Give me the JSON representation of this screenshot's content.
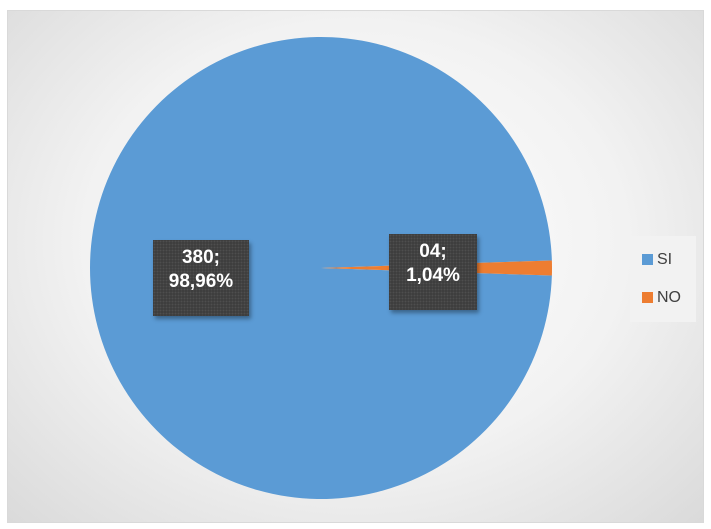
{
  "chart_data": {
    "type": "pie",
    "categories": [
      "SI",
      "NO"
    ],
    "values": [
      380,
      4
    ],
    "colors": [
      "#5b9bd5",
      "#ed7d31"
    ],
    "data_labels": [
      {
        "count": "380;",
        "percent": "98,96%"
      },
      {
        "count": "04;",
        "percent": "1,04%"
      }
    ],
    "legend": {
      "position": "right",
      "entries": [
        "SI",
        "NO"
      ]
    }
  }
}
